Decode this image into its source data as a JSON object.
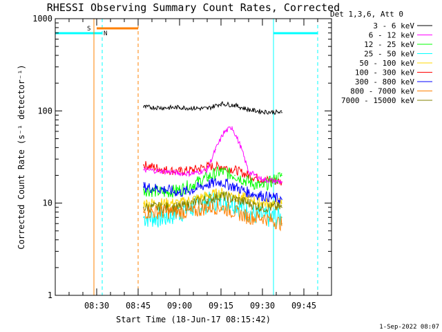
{
  "chart_data": {
    "type": "line",
    "title": "RHESSI Observing Summary Count Rates, Corrected",
    "xlabel": "Start Time (18-Jun-17 08:15:42)",
    "ylabel": "Corrected Count Rate (s⁻¹ detector⁻¹)",
    "y_scale": "log",
    "ylim": [
      1,
      1000
    ],
    "xlim": [
      "08:15",
      "09:55"
    ],
    "x_ticks": [
      "08:30",
      "08:45",
      "09:00",
      "09:15",
      "09:30",
      "09:45"
    ],
    "y_ticks": [
      "1",
      "10",
      "100",
      "1000"
    ],
    "legend_title": "Det 1,3,6, Att 0",
    "legend_position": "top-right outside",
    "timestamp": "1-Sep-2022 08:07",
    "series": [
      {
        "name": "3 - 6 keV",
        "color": "#000000",
        "x": [
          "08:47",
          "08:55",
          "09:00",
          "09:05",
          "09:10",
          "09:15",
          "09:20",
          "09:25",
          "09:30",
          "09:37"
        ],
        "values": [
          110,
          108,
          109,
          107,
          106,
          120,
          115,
          103,
          98,
          96
        ]
      },
      {
        "name": "6 - 12 keV",
        "color": "#ff00ff",
        "x": [
          "08:47",
          "08:55",
          "09:00",
          "09:05",
          "09:10",
          "09:13",
          "09:16",
          "09:19",
          "09:22",
          "09:25",
          "09:30",
          "09:37"
        ],
        "values": [
          23,
          22,
          21,
          21,
          23,
          38,
          58,
          67,
          42,
          22,
          18,
          17
        ]
      },
      {
        "name": "12 - 25 keV",
        "color": "#00ff00",
        "x": [
          "08:47",
          "08:55",
          "09:00",
          "09:05",
          "09:10",
          "09:15",
          "09:20",
          "09:25",
          "09:30",
          "09:37"
        ],
        "values": [
          14,
          13,
          14,
          16,
          19,
          22,
          20,
          17,
          15,
          20
        ]
      },
      {
        "name": "25 - 50 keV",
        "color": "#00ffff",
        "x": [
          "08:47",
          "08:55",
          "09:00",
          "09:05",
          "09:10",
          "09:15",
          "09:20",
          "09:25",
          "09:30",
          "09:37"
        ],
        "values": [
          7,
          7,
          8,
          9,
          10,
          11,
          10,
          8,
          7,
          7
        ]
      },
      {
        "name": "50 - 100 keV",
        "color": "#ffd700",
        "x": [
          "08:47",
          "08:55",
          "09:00",
          "09:05",
          "09:10",
          "09:15",
          "09:20",
          "09:25",
          "09:30",
          "09:37"
        ],
        "values": [
          10,
          10,
          10,
          11,
          12,
          13,
          12,
          11,
          10,
          10
        ]
      },
      {
        "name": "100 - 300 keV",
        "color": "#ff0000",
        "x": [
          "08:47",
          "08:55",
          "09:00",
          "09:05",
          "09:10",
          "09:15",
          "09:20",
          "09:25",
          "09:30",
          "09:37"
        ],
        "values": [
          26,
          23,
          22,
          23,
          25,
          25,
          23,
          20,
          18,
          17
        ]
      },
      {
        "name": "300 - 800 keV",
        "color": "#0000ff",
        "x": [
          "08:47",
          "08:55",
          "09:00",
          "09:05",
          "09:10",
          "09:15",
          "09:20",
          "09:25",
          "09:30",
          "09:37"
        ],
        "values": [
          15,
          14,
          13,
          14,
          16,
          17,
          15,
          13,
          12,
          11
        ]
      },
      {
        "name": "800 - 7000 keV",
        "color": "#ff8000",
        "x": [
          "08:47",
          "08:55",
          "09:00",
          "09:05",
          "09:10",
          "09:15",
          "09:20",
          "09:25",
          "09:30",
          "09:37"
        ],
        "values": [
          8,
          8,
          8,
          8,
          9,
          9,
          8,
          7,
          7,
          6
        ]
      },
      {
        "name": "7000 - 15000 keV",
        "color": "#808000",
        "x": [
          "08:47",
          "08:55",
          "09:00",
          "09:05",
          "09:10",
          "09:15",
          "09:20",
          "09:25",
          "09:30",
          "09:37"
        ],
        "values": [
          9,
          9,
          9,
          10,
          11,
          12,
          11,
          10,
          9,
          9
        ]
      }
    ],
    "annotations": {
      "saa_label": "S",
      "saa_color": "#ff8000",
      "saa_solid_line": "08:29",
      "saa_dashed_line": "08:45",
      "saa_bar": [
        "08:30",
        "08:45"
      ],
      "night_label": "N",
      "night_color": "#00ffff",
      "night_solid_lines": [
        "08:15",
        "09:34"
      ],
      "night_dashed_lines": [
        "08:32",
        "09:50"
      ],
      "night_bars": [
        [
          "08:15",
          "08:32"
        ],
        [
          "09:34",
          "09:50"
        ]
      ]
    }
  }
}
